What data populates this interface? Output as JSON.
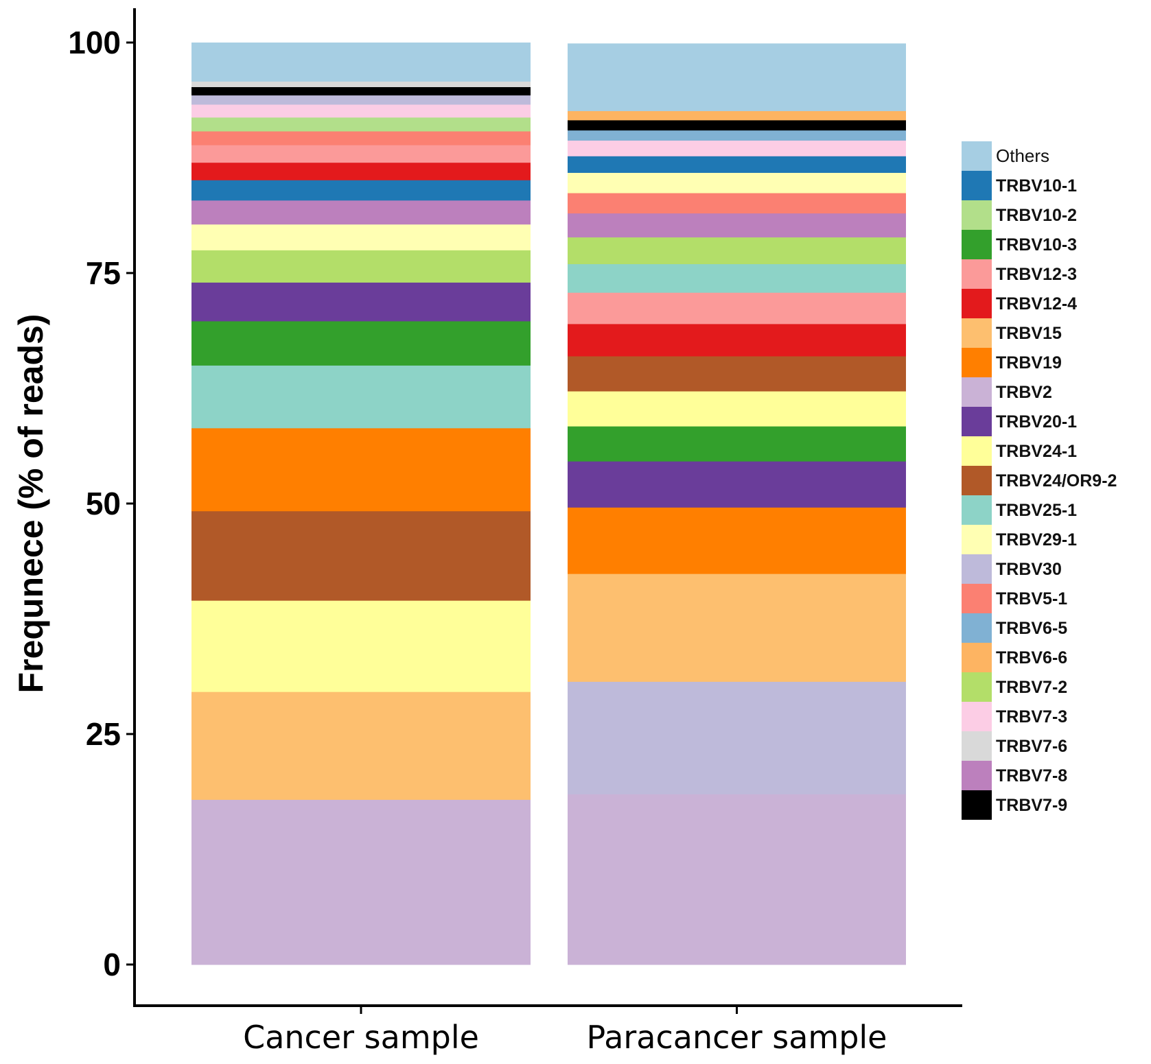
{
  "chart_data": {
    "type": "bar",
    "stacked": true,
    "title": "",
    "xlabel": "",
    "ylabel": "Frequnece (% of reads)",
    "ylim": [
      0,
      100
    ],
    "yticks": [
      "0",
      "25",
      "50",
      "75",
      "100"
    ],
    "categories": [
      "Cancer sample",
      "Paracancer sample"
    ],
    "legend_position": "right",
    "legend": [
      "Others",
      "TRBV10-1",
      "TRBV10-2",
      "TRBV10-3",
      "TRBV12-3",
      "TRBV12-4",
      "TRBV15",
      "TRBV19",
      "TRBV2",
      "TRBV20-1",
      "TRBV24-1",
      "TRBV24/OR9-2",
      "TRBV25-1",
      "TRBV29-1",
      "TRBV30",
      "TRBV5-1",
      "TRBV6-5",
      "TRBV6-6",
      "TRBV7-2",
      "TRBV7-3",
      "TRBV7-6",
      "TRBV7-8",
      "TRBV7-9"
    ],
    "colors": {
      "Others": "#a6cee3",
      "TRBV10-1": "#1f78b4",
      "TRBV10-2": "#b2df8a",
      "TRBV10-3": "#33a02c",
      "TRBV12-3": "#fb9a99",
      "TRBV12-4": "#e31a1c",
      "TRBV15": "#fdbf6f",
      "TRBV19": "#ff7f00",
      "TRBV2": "#cab2d6",
      "TRBV20-1": "#6a3d9a",
      "TRBV24-1": "#ffff99",
      "TRBV24/OR9-2": "#b15928",
      "TRBV25-1": "#8dd3c7",
      "TRBV29-1": "#ffffb3",
      "TRBV30": "#bebada",
      "TRBV5-1": "#fb8072",
      "TRBV6-5": "#80b1d3",
      "TRBV6-6": "#fdb462",
      "TRBV7-2": "#b3de69",
      "TRBV7-3": "#fccde5",
      "TRBV7-6": "#d9d9d9",
      "TRBV7-8": "#bc80bd",
      "TRBV7-9": "#000000"
    },
    "stacks": [
      {
        "category": "Cancer sample",
        "segments": [
          {
            "name": "TRBV2",
            "value": 17.9
          },
          {
            "name": "TRBV15",
            "value": 11.7
          },
          {
            "name": "TRBV24-1",
            "value": 9.9
          },
          {
            "name": "TRBV24/OR9-2",
            "value": 9.7
          },
          {
            "name": "TRBV19",
            "value": 9.0
          },
          {
            "name": "TRBV25-1",
            "value": 6.8
          },
          {
            "name": "TRBV10-3",
            "value": 4.8
          },
          {
            "name": "TRBV20-1",
            "value": 4.2
          },
          {
            "name": "TRBV7-2",
            "value": 3.5
          },
          {
            "name": "TRBV29-1",
            "value": 2.8
          },
          {
            "name": "TRBV7-8",
            "value": 2.6
          },
          {
            "name": "TRBV10-1",
            "value": 2.2
          },
          {
            "name": "TRBV12-4",
            "value": 1.9
          },
          {
            "name": "TRBV12-3",
            "value": 1.9
          },
          {
            "name": "TRBV5-1",
            "value": 1.5
          },
          {
            "name": "TRBV10-2",
            "value": 1.5
          },
          {
            "name": "TRBV7-3",
            "value": 1.4
          },
          {
            "name": "TRBV30",
            "value": 1.0
          },
          {
            "name": "TRBV7-9",
            "value": 0.9
          },
          {
            "name": "TRBV7-6",
            "value": 0.6
          },
          {
            "name": "Others",
            "value": 4.2
          }
        ]
      },
      {
        "category": "Paracancer sample",
        "segments": [
          {
            "name": "TRBV2",
            "value": 18.5
          },
          {
            "name": "TRBV30",
            "value": 12.2
          },
          {
            "name": "TRBV15",
            "value": 11.7
          },
          {
            "name": "TRBV19",
            "value": 7.2
          },
          {
            "name": "TRBV20-1",
            "value": 5.0
          },
          {
            "name": "TRBV10-3",
            "value": 3.8
          },
          {
            "name": "TRBV24-1",
            "value": 3.8
          },
          {
            "name": "TRBV24/OR9-2",
            "value": 3.8
          },
          {
            "name": "TRBV12-4",
            "value": 3.5
          },
          {
            "name": "TRBV12-3",
            "value": 3.4
          },
          {
            "name": "TRBV25-1",
            "value": 3.1
          },
          {
            "name": "TRBV7-2",
            "value": 2.9
          },
          {
            "name": "TRBV7-8",
            "value": 2.6
          },
          {
            "name": "TRBV5-1",
            "value": 2.2
          },
          {
            "name": "TRBV29-1",
            "value": 2.2
          },
          {
            "name": "TRBV10-1",
            "value": 1.8
          },
          {
            "name": "TRBV7-3",
            "value": 1.7
          },
          {
            "name": "TRBV6-5",
            "value": 1.1
          },
          {
            "name": "TRBV7-9",
            "value": 1.1
          },
          {
            "name": "TRBV6-6",
            "value": 1.0
          },
          {
            "name": "Others",
            "value": 7.3
          }
        ]
      }
    ]
  }
}
